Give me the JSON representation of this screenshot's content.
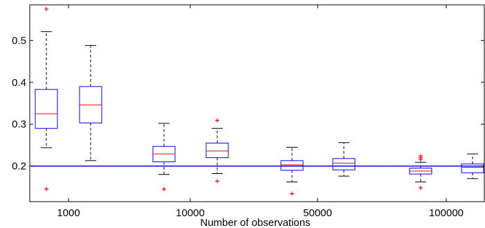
{
  "chart_data": {
    "type": "boxplot",
    "title": "",
    "xlabel": "Number of observations",
    "ylabel": "",
    "ylim": [
      0.115,
      0.585
    ],
    "yticks": [
      "0.2",
      "0.3",
      "0.4",
      "0.5"
    ],
    "yticks_values": [
      0.2,
      0.3,
      0.4,
      0.5
    ],
    "categories": [
      "1000",
      "10000",
      "50000",
      "100000"
    ],
    "boxes_per_category": 2,
    "reference_line": {
      "y": 0.2,
      "color": "#0000ff"
    },
    "colors": {
      "box": "#0000ff",
      "median": "#ff0000",
      "whisker": "#000000",
      "outlier": "#ff0000",
      "axis": "#000000"
    },
    "boxes": [
      {
        "category": "1000",
        "whislo": 0.244,
        "q1": 0.29,
        "median": 0.325,
        "q3": 0.383,
        "whishi": 0.521,
        "outliers": [
          0.575,
          0.145
        ]
      },
      {
        "category": "1000",
        "whislo": 0.213,
        "q1": 0.303,
        "median": 0.346,
        "q3": 0.39,
        "whishi": 0.488,
        "outliers": []
      },
      {
        "category": "10000",
        "whislo": 0.18,
        "q1": 0.21,
        "median": 0.229,
        "q3": 0.247,
        "whishi": 0.302,
        "outliers": [
          0.145
        ]
      },
      {
        "category": "10000",
        "whislo": 0.182,
        "q1": 0.22,
        "median": 0.236,
        "q3": 0.255,
        "whishi": 0.29,
        "outliers": [
          0.309,
          0.164
        ]
      },
      {
        "category": "50000",
        "whislo": 0.162,
        "q1": 0.19,
        "median": 0.203,
        "q3": 0.213,
        "whishi": 0.245,
        "outliers": [
          0.134
        ]
      },
      {
        "category": "50000",
        "whislo": 0.176,
        "q1": 0.191,
        "median": 0.207,
        "q3": 0.218,
        "whishi": 0.256,
        "outliers": []
      },
      {
        "category": "100000",
        "whislo": 0.162,
        "q1": 0.181,
        "median": 0.188,
        "q3": 0.195,
        "whishi": 0.209,
        "outliers": [
          0.224,
          0.22,
          0.216,
          0.148
        ]
      },
      {
        "category": "100000",
        "whislo": 0.17,
        "q1": 0.184,
        "median": 0.197,
        "q3": 0.205,
        "whishi": 0.229,
        "outliers": []
      }
    ]
  }
}
